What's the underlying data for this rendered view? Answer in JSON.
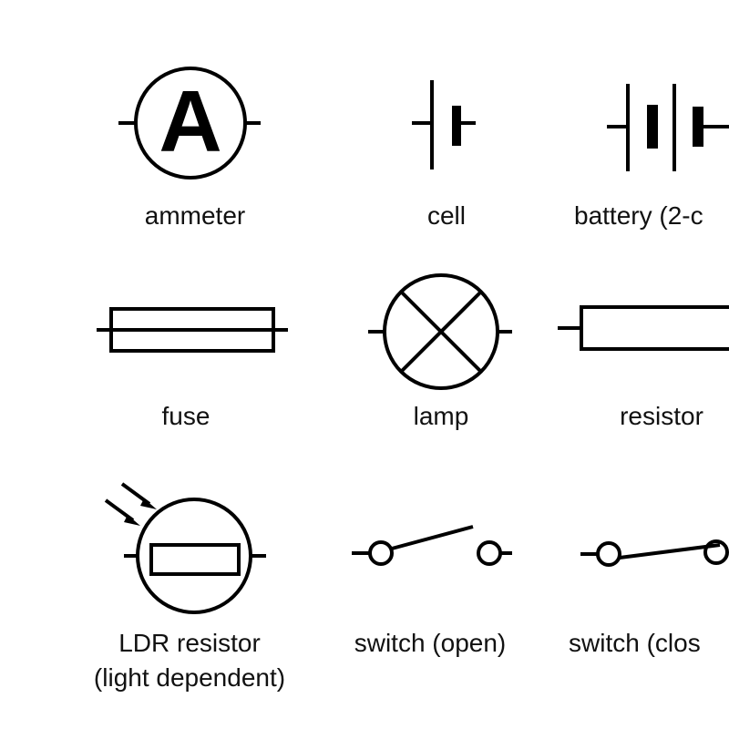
{
  "symbols": [
    {
      "id": "ammeter",
      "label": "ammeter",
      "letter": "A"
    },
    {
      "id": "cell",
      "label": "cell"
    },
    {
      "id": "battery",
      "label": "battery (2-c"
    },
    {
      "id": "fuse",
      "label": "fuse"
    },
    {
      "id": "lamp",
      "label": "lamp"
    },
    {
      "id": "resistor",
      "label": "resistor"
    },
    {
      "id": "ldr",
      "label_line1": "LDR resistor",
      "label_line2": "(light dependent)"
    },
    {
      "id": "switch-open",
      "label": "switch (open)"
    },
    {
      "id": "switch-closed",
      "label": "switch (clos"
    }
  ],
  "colors": {
    "ink": "#000000",
    "background": "#ffffff"
  }
}
